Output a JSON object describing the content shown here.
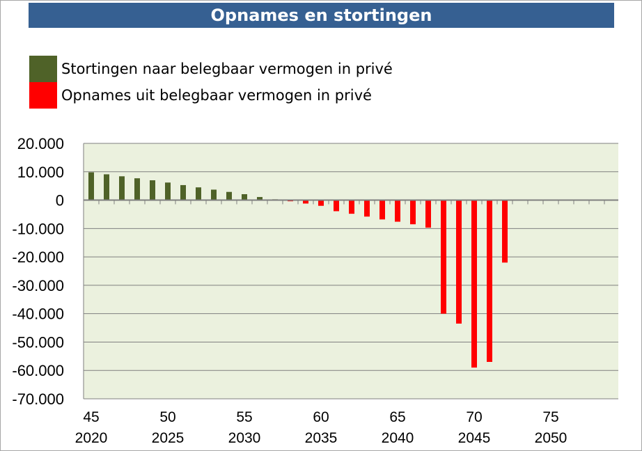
{
  "title": "Opnames en stortingen",
  "legend": {
    "items": [
      {
        "label": "Stortingen naar belegbaar vermogen in privé",
        "color": "#4f6228"
      },
      {
        "label": "Opnames uit belegbaar vermogen in privé",
        "color": "#ff0000"
      }
    ]
  },
  "colors": {
    "plot_background": "#ebf1de",
    "gridline": "#7f7f7f",
    "positive": "#4f6228",
    "negative": "#ff0000"
  },
  "chart_data": {
    "type": "bar",
    "title": "Opnames en stortingen",
    "x": [
      45,
      46,
      47,
      48,
      49,
      50,
      51,
      52,
      53,
      54,
      55,
      56,
      57,
      58,
      59,
      60,
      61,
      62,
      63,
      64,
      65,
      66,
      67,
      68,
      69,
      70,
      71,
      72,
      73,
      74,
      75,
      76,
      77,
      78,
      79,
      80
    ],
    "series": [
      {
        "name": "Stortingen naar belegbaar vermogen in privé",
        "values": [
          9800,
          9100,
          8400,
          7700,
          7000,
          6200,
          5300,
          4500,
          3700,
          2900,
          2100,
          1100,
          300,
          0,
          0,
          0,
          0,
          0,
          0,
          0,
          0,
          0,
          0,
          0,
          0,
          0,
          0,
          0,
          0,
          0,
          0,
          0,
          0,
          0,
          0,
          0
        ]
      },
      {
        "name": "Opnames uit belegbaar vermogen in privé",
        "values": [
          0,
          0,
          0,
          0,
          0,
          0,
          0,
          0,
          0,
          0,
          0,
          0,
          0,
          -400,
          -1200,
          -2000,
          -3900,
          -4800,
          -5800,
          -6800,
          -7600,
          -8500,
          -9700,
          -40000,
          -43500,
          -59000,
          -57000,
          -22000,
          0,
          0,
          0,
          0,
          0,
          0,
          0,
          0
        ]
      }
    ],
    "ylim": [
      -70000,
      20000
    ],
    "yticks": [
      "20.000",
      "10.000",
      "0",
      "-10.000",
      "-20.000",
      "-30.000",
      "-40.000",
      "-50.000",
      "-60.000",
      "-70.000"
    ],
    "xtick_ages": [
      "45",
      "50",
      "55",
      "60",
      "65",
      "70",
      "75"
    ],
    "xtick_years": [
      "2020",
      "2025",
      "2030",
      "2035",
      "2040",
      "2045",
      "2050"
    ],
    "grid": true,
    "legend_position": "top-left"
  }
}
